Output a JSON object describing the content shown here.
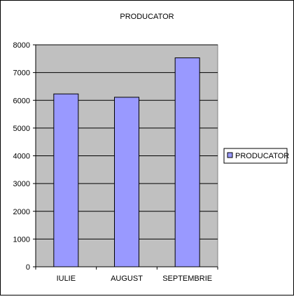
{
  "chart_data": {
    "type": "bar",
    "title": "PRODUCATOR",
    "xlabel": "",
    "ylabel": "",
    "categories": [
      "IULIE",
      "AUGUST",
      "SEPTEMBRIE"
    ],
    "series": [
      {
        "name": "PRODUCATOR",
        "values": [
          6230,
          6110,
          7530
        ]
      }
    ],
    "ylim": [
      0,
      8000
    ],
    "yticks": [
      "0",
      "1000",
      "2000",
      "3000",
      "4000",
      "5000",
      "6000",
      "7000",
      "8000"
    ],
    "grid": true,
    "legend_position": "right",
    "colors": {
      "bar": "#9999ff",
      "plot_area": "#c0c0c0",
      "border": "#000000"
    }
  }
}
